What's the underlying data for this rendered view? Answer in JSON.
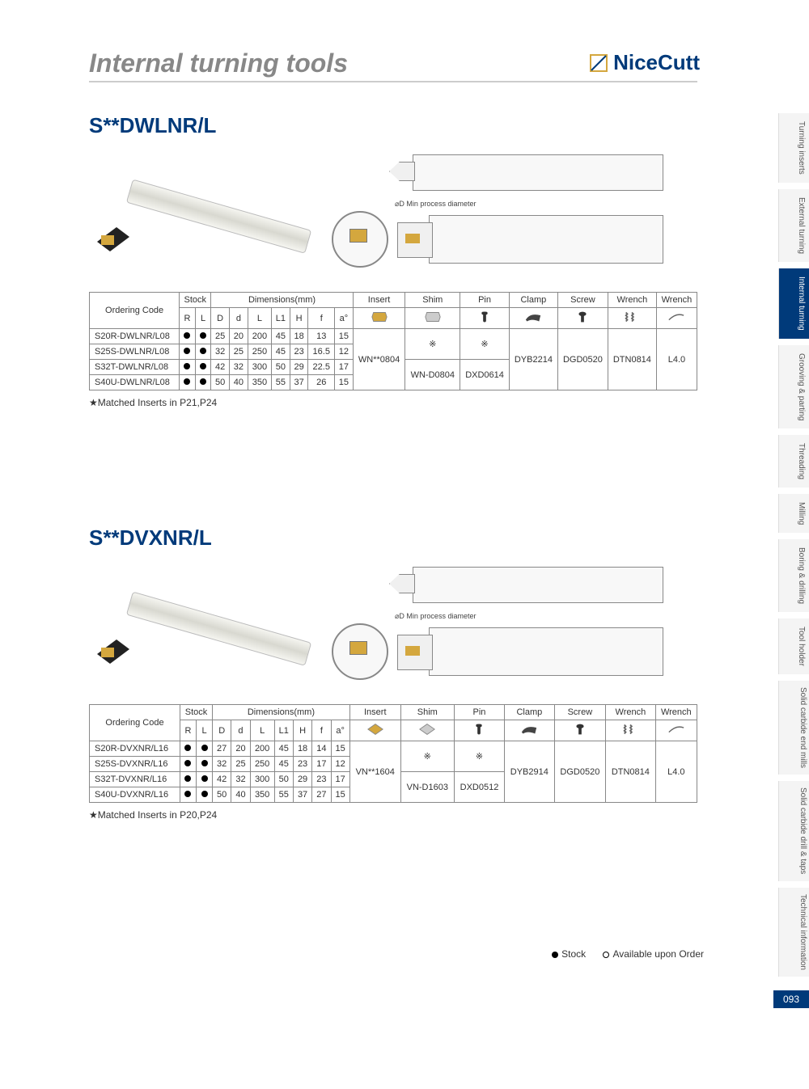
{
  "page_title": "Internal turning tools",
  "brand": "NiceCutt",
  "page_number": "093",
  "legend": {
    "stock": "Stock",
    "avail": "Available upon Order"
  },
  "diagram_label": "Min process diameter",
  "tabs": [
    {
      "label": "Turning inserts",
      "active": false
    },
    {
      "label": "External turning",
      "active": false
    },
    {
      "label": "Internal turning",
      "active": true
    },
    {
      "label": "Grooving & parting",
      "active": false
    },
    {
      "label": "Threading",
      "active": false
    },
    {
      "label": "Milling",
      "active": false
    },
    {
      "label": "Boring & drilling",
      "active": false
    },
    {
      "label": "Tool holder",
      "active": false
    },
    {
      "label": "Solid carbide\nend mills",
      "active": false,
      "multiline": true
    },
    {
      "label": "Solid carbide\ndrill & taps",
      "active": false,
      "multiline": true
    },
    {
      "label": "Technical\ninformation",
      "active": false,
      "multiline": true
    }
  ],
  "headers": {
    "ordering": "Ordering Code",
    "stock": "Stock",
    "dimensions": "Dimensions(mm)",
    "insert": "Insert",
    "shim": "Shim",
    "pin": "Pin",
    "clamp": "Clamp",
    "screw": "Screw",
    "wrench1": "Wrench",
    "wrench2": "Wrench",
    "dim_cols": [
      "R",
      "L",
      "D",
      "d",
      "L",
      "L1",
      "H",
      "f",
      "a°"
    ]
  },
  "section1": {
    "title": "S**DWLNR/L",
    "note": "★Matched Inserts in P21,P24",
    "insert": "WN**0804",
    "shim_a": "※",
    "pin_a": "※",
    "shim_b": "WN-D0804",
    "pin_b": "DXD0614",
    "clamp": "DYB2214",
    "screw": "DGD0520",
    "wrench1": "DTN0814",
    "wrench2": "L4.0",
    "rows": [
      {
        "code": "S20R-DWLNR/L08",
        "D": "25",
        "d": "20",
        "L": "200",
        "L1": "45",
        "H": "18",
        "f": "13",
        "a": "15"
      },
      {
        "code": "S25S-DWLNR/L08",
        "D": "32",
        "d": "25",
        "L": "250",
        "L1": "45",
        "H": "23",
        "f": "16.5",
        "a": "12"
      },
      {
        "code": "S32T-DWLNR/L08",
        "D": "42",
        "d": "32",
        "L": "300",
        "L1": "50",
        "H": "29",
        "f": "22.5",
        "a": "17"
      },
      {
        "code": "S40U-DWLNR/L08",
        "D": "50",
        "d": "40",
        "L": "350",
        "L1": "55",
        "H": "37",
        "f": "26",
        "a": "15"
      }
    ]
  },
  "section2": {
    "title": "S**DVXNR/L",
    "note": "★Matched Inserts in P20,P24",
    "insert": "VN**1604",
    "shim_a": "※",
    "pin_a": "※",
    "shim_b": "VN-D1603",
    "pin_b": "DXD0512",
    "clamp": "DYB2914",
    "screw": "DGD0520",
    "wrench1": "DTN0814",
    "wrench2": "L4.0",
    "rows": [
      {
        "code": "S20R-DVXNR/L16",
        "D": "27",
        "d": "20",
        "L": "200",
        "L1": "45",
        "H": "18",
        "f": "14",
        "a": "15"
      },
      {
        "code": "S25S-DVXNR/L16",
        "D": "32",
        "d": "25",
        "L": "250",
        "L1": "45",
        "H": "23",
        "f": "17",
        "a": "12"
      },
      {
        "code": "S32T-DVXNR/L16",
        "D": "42",
        "d": "32",
        "L": "300",
        "L1": "50",
        "H": "29",
        "f": "23",
        "a": "17"
      },
      {
        "code": "S40U-DVXNR/L16",
        "D": "50",
        "d": "40",
        "L": "350",
        "L1": "55",
        "H": "37",
        "f": "27",
        "a": "15"
      }
    ]
  },
  "colors": {
    "title": "#888888",
    "brand": "#003a7a",
    "border": "#888888",
    "tab_active": "#003a7a"
  }
}
